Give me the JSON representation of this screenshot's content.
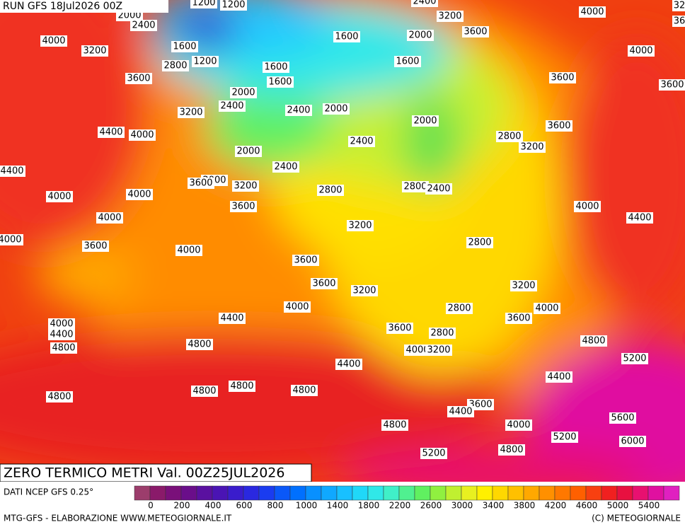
{
  "header": {
    "run": "RUN GFS 18Jul2026 00Z"
  },
  "map": {
    "contour_labels": [
      "1200",
      "1200",
      "2000",
      "2400",
      "2400",
      "3200",
      "4000",
      "32",
      "36",
      "4000",
      "3200",
      "1600",
      "1200",
      "2800",
      "1600",
      "2000",
      "3600",
      "4000",
      "1600",
      "1600",
      "3600",
      "1600",
      "3600",
      "3600",
      "2000",
      "2400",
      "3200",
      "2400",
      "2000",
      "2000",
      "3600",
      "4400",
      "4000",
      "2800",
      "3200",
      "2400",
      "2000",
      "4400",
      "2400",
      "2000",
      "3600",
      "3200",
      "2800",
      "2800",
      "2400",
      "4000",
      "4000",
      "3600",
      "4000",
      "4400",
      "4000",
      "3200",
      "4000",
      "2800",
      "3600",
      "4000",
      "3600",
      "3600",
      "3200",
      "3200",
      "4000",
      "4400",
      "2800",
      "4000",
      "3600",
      "4000",
      "4400",
      "4800",
      "3600",
      "2800",
      "4800",
      "4000",
      "3200",
      "4800",
      "5200",
      "4400",
      "4400",
      "4800",
      "4800",
      "4800",
      "4800",
      "3600",
      "4400",
      "5600",
      "4800",
      "4000",
      "5200",
      "6000",
      "4800",
      "5200"
    ]
  },
  "title": "ZERO TERMICO METRI Val. 00Z25JUL2026",
  "legend": {
    "source": "DATI NCEP GFS 0.25°",
    "colors": [
      "#9c3d6c",
      "#8a1a6a",
      "#7a107a",
      "#6a0e8a",
      "#5a10a0",
      "#4a14b4",
      "#3a1ccc",
      "#2a28e0",
      "#1a3cf0",
      "#0a58f8",
      "#0070ff",
      "#0890ff",
      "#10a8ff",
      "#18c0ff",
      "#20d8f8",
      "#30e8e8",
      "#40f0c8",
      "#50f090",
      "#60f060",
      "#90f040",
      "#c0f030",
      "#e8f020",
      "#fff000",
      "#ffd800",
      "#ffc000",
      "#ffa800",
      "#ff9000",
      "#ff7800",
      "#ff6000",
      "#f84010",
      "#f02020",
      "#e81040",
      "#e81070",
      "#e010a0",
      "#e020c0"
    ],
    "ticks": [
      0,
      200,
      400,
      600,
      800,
      1000,
      1400,
      1800,
      2200,
      2600,
      3000,
      3400,
      3800,
      4200,
      4600,
      5000,
      5400
    ]
  },
  "footer": {
    "left": "MTG-GFS - ELABORAZIONE WWW.METEOGIORNALE.IT",
    "right": "(C) METEOGIORNALE"
  }
}
